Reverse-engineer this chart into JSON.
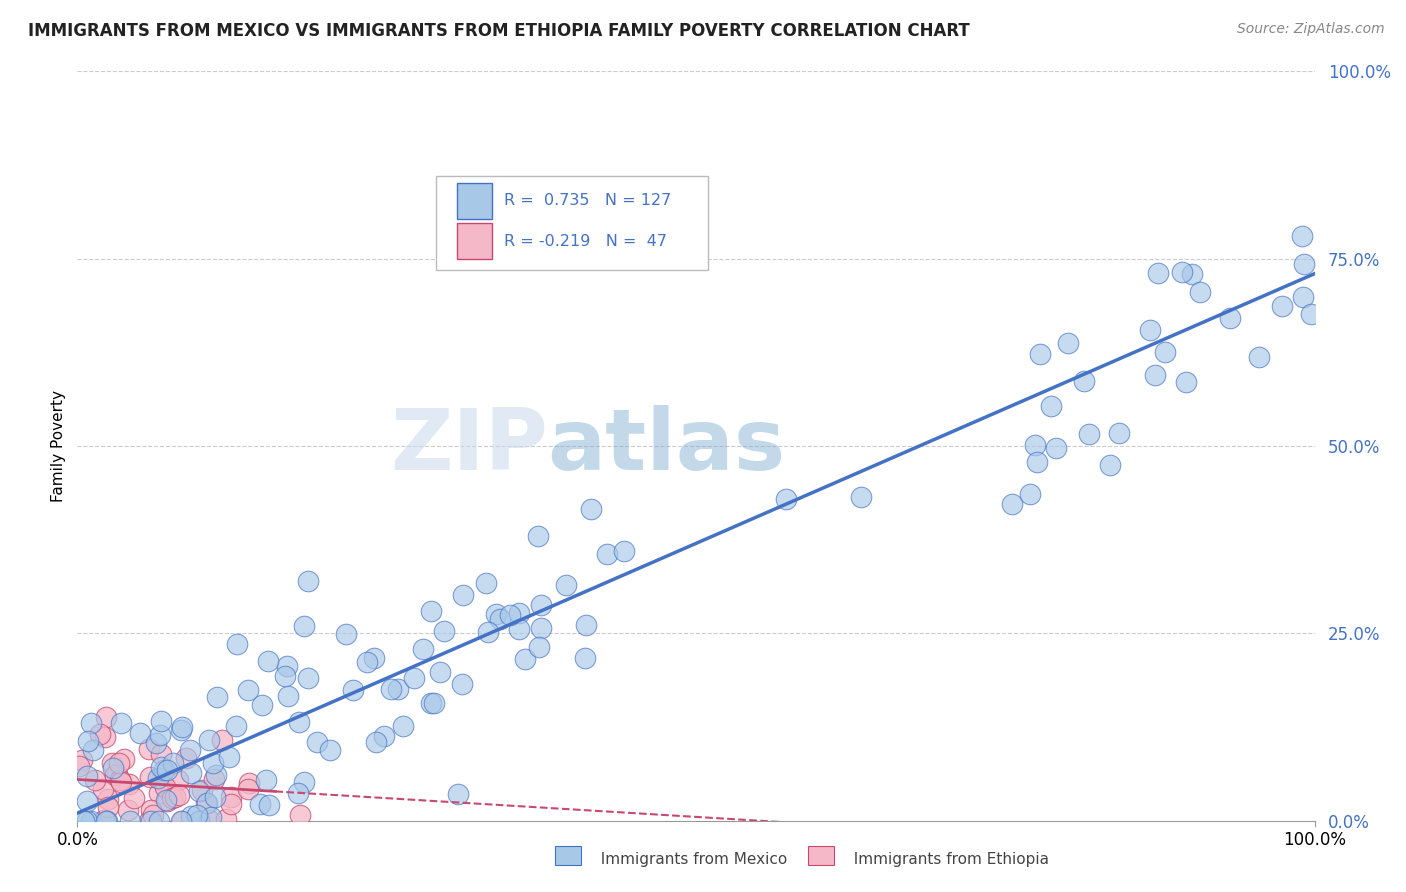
{
  "title": "IMMIGRANTS FROM MEXICO VS IMMIGRANTS FROM ETHIOPIA FAMILY POVERTY CORRELATION CHART",
  "source": "Source: ZipAtlas.com",
  "ylabel": "Family Poverty",
  "mexico_color": "#A8C8E8",
  "mexico_color_line": "#4472C4",
  "ethiopia_color": "#F4B8C8",
  "ethiopia_color_line": "#C84870",
  "watermark_zip": "ZIP",
  "watermark_atlas": "atlas",
  "background_color": "#FFFFFF",
  "grid_color": "#CCCCCC",
  "title_fontsize": 12,
  "axis_label_fontsize": 11,
  "right_tick_color": "#4472C4",
  "legend_box_color": "#E8E8E8",
  "slope_mex": 0.72,
  "intercept_mex": 0.01,
  "slope_eth": -0.1,
  "intercept_eth": 0.055
}
